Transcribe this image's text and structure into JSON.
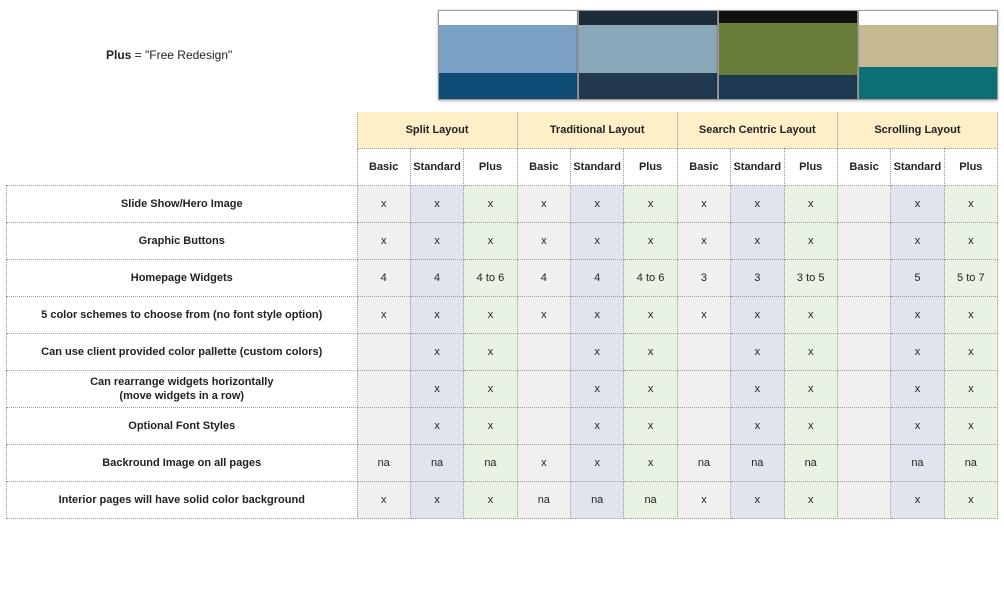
{
  "note_bold": "Plus",
  "note_rest": " = \"Free Redesign\"",
  "layouts": [
    "Split Layout",
    "Traditional Layout",
    "Search Centric Layout",
    "Scrolling Layout"
  ],
  "tiers": [
    "Basic",
    "Standard",
    "Plus"
  ],
  "tier_colors": {
    "Basic": "#f1f0ee",
    "Standard": "#dfe4ee",
    "Plus": "#e8f3e4"
  },
  "header_bg": "#ffefc8",
  "rows": [
    {
      "label": "Slide Show/Hero Image",
      "cells": [
        "x",
        "x",
        "x",
        "x",
        "x",
        "x",
        "x",
        "x",
        "x",
        "",
        "x",
        "x"
      ]
    },
    {
      "label": "Graphic Buttons",
      "cells": [
        "x",
        "x",
        "x",
        "x",
        "x",
        "x",
        "x",
        "x",
        "x",
        "",
        "x",
        "x"
      ]
    },
    {
      "label": "Homepage Widgets",
      "cells": [
        "4",
        "4",
        "4 to 6",
        "4",
        "4",
        "4 to 6",
        "3",
        "3",
        "3 to 5",
        "",
        "5",
        "5 to 7"
      ]
    },
    {
      "label": "5 color schemes to choose from (no font style option)",
      "cells": [
        "x",
        "x",
        "x",
        "x",
        "x",
        "x",
        "x",
        "x",
        "x",
        "",
        "x",
        "x"
      ]
    },
    {
      "label": "Can use client provided color pallette (custom colors)",
      "cells": [
        "",
        "x",
        "x",
        "",
        "x",
        "x",
        "",
        "x",
        "x",
        "",
        "x",
        "x"
      ]
    },
    {
      "label": "Can rearrange widgets horizontally\n(move widgets in a row)",
      "cells": [
        "",
        "x",
        "x",
        "",
        "x",
        "x",
        "",
        "x",
        "x",
        "",
        "x",
        "x"
      ]
    },
    {
      "label": "Optional Font Styles",
      "cells": [
        "",
        "x",
        "x",
        "",
        "x",
        "x",
        "",
        "x",
        "x",
        "",
        "x",
        "x"
      ]
    },
    {
      "label": "Backround Image on all pages",
      "cells": [
        "na",
        "na",
        "na",
        "x",
        "x",
        "x",
        "na",
        "na",
        "na",
        "",
        "na",
        "na"
      ]
    },
    {
      "label": "Interior pages will have solid color background",
      "cells": [
        "x",
        "x",
        "x",
        "na",
        "na",
        "na",
        "x",
        "x",
        "x",
        "",
        "x",
        "x"
      ]
    }
  ],
  "thumbs": [
    {
      "top_h": 14,
      "top_c": "#ffffff",
      "mid_h": 50,
      "mid_c": "#7aa0c4",
      "bot_h": 26,
      "bot_c": "#0f4c75"
    },
    {
      "top_h": 14,
      "top_c": "#1d2b3a",
      "mid_h": 50,
      "mid_c": "#8aa9b8",
      "bot_h": 26,
      "bot_c": "#22384f"
    },
    {
      "top_h": 12,
      "top_c": "#111111",
      "mid_h": 54,
      "mid_c": "#6b7d3a",
      "bot_h": 24,
      "bot_c": "#1d3a52"
    },
    {
      "top_h": 14,
      "top_c": "#ffffff",
      "mid_h": 44,
      "mid_c": "#c7b98f",
      "bot_h": 32,
      "bot_c": "#0d6e74"
    }
  ]
}
